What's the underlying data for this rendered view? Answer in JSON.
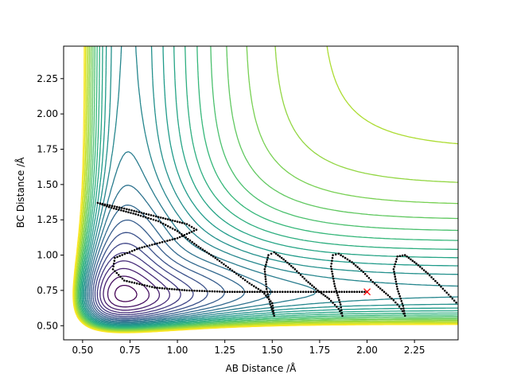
{
  "chart_data": {
    "type": "contour",
    "xlabel": "AB Distance /Å",
    "ylabel": "BC Distance /Å",
    "xlim": [
      0.4,
      2.48
    ],
    "ylim": [
      0.4,
      2.48
    ],
    "xticks": [
      "0.50",
      "0.75",
      "1.00",
      "1.25",
      "1.50",
      "1.75",
      "2.00",
      "2.25"
    ],
    "yticks": [
      "0.50",
      "0.75",
      "1.00",
      "1.25",
      "1.50",
      "1.75",
      "2.00",
      "2.25"
    ],
    "colormap": [
      "#440154",
      "#482878",
      "#3e4989",
      "#31688e",
      "#26828e",
      "#1f9e89",
      "#35b779",
      "#6ece58",
      "#b5de2b",
      "#fde725"
    ],
    "contour_levels": 25,
    "grid": false,
    "trajectory": {
      "color": "#000000",
      "style": "dotted",
      "points": [
        [
          2.0,
          0.74
        ],
        [
          1.8,
          0.74
        ],
        [
          1.5,
          0.74
        ],
        [
          1.25,
          0.74
        ],
        [
          1.05,
          0.75
        ],
        [
          0.88,
          0.77
        ],
        [
          0.72,
          0.82
        ],
        [
          0.66,
          0.9
        ],
        [
          0.67,
          0.98
        ],
        [
          0.8,
          1.05
        ],
        [
          1.0,
          1.12
        ],
        [
          1.1,
          1.18
        ],
        [
          1.05,
          1.22
        ],
        [
          0.9,
          1.27
        ],
        [
          0.72,
          1.33
        ],
        [
          0.58,
          1.37
        ],
        [
          0.64,
          1.34
        ],
        [
          0.78,
          1.29
        ],
        [
          0.9,
          1.24
        ],
        [
          1.0,
          1.17
        ],
        [
          1.1,
          1.07
        ],
        [
          1.2,
          0.98
        ],
        [
          1.3,
          0.88
        ],
        [
          1.38,
          0.8
        ],
        [
          1.45,
          0.74
        ],
        [
          1.5,
          0.66
        ],
        [
          1.51,
          0.57
        ],
        [
          1.49,
          0.65
        ],
        [
          1.47,
          0.76
        ],
        [
          1.46,
          0.9
        ],
        [
          1.48,
          1.0
        ],
        [
          1.51,
          1.02
        ],
        [
          1.56,
          0.97
        ],
        [
          1.62,
          0.9
        ],
        [
          1.68,
          0.82
        ],
        [
          1.74,
          0.75
        ],
        [
          1.8,
          0.69
        ],
        [
          1.85,
          0.62
        ],
        [
          1.87,
          0.57
        ],
        [
          1.86,
          0.65
        ],
        [
          1.83,
          0.78
        ],
        [
          1.81,
          0.92
        ],
        [
          1.82,
          1.0
        ],
        [
          1.85,
          1.01
        ],
        [
          1.92,
          0.95
        ],
        [
          1.98,
          0.88
        ],
        [
          2.03,
          0.81
        ],
        [
          2.09,
          0.74
        ],
        [
          2.14,
          0.68
        ],
        [
          2.18,
          0.62
        ],
        [
          2.2,
          0.57
        ],
        [
          2.19,
          0.64
        ],
        [
          2.16,
          0.76
        ],
        [
          2.14,
          0.9
        ],
        [
          2.16,
          0.99
        ],
        [
          2.2,
          1.0
        ],
        [
          2.26,
          0.94
        ],
        [
          2.32,
          0.87
        ],
        [
          2.38,
          0.79
        ],
        [
          2.43,
          0.72
        ],
        [
          2.48,
          0.65
        ]
      ]
    },
    "marker": {
      "symbol": "x",
      "color": "#ff0000",
      "x": 2.0,
      "y": 0.74
    }
  }
}
